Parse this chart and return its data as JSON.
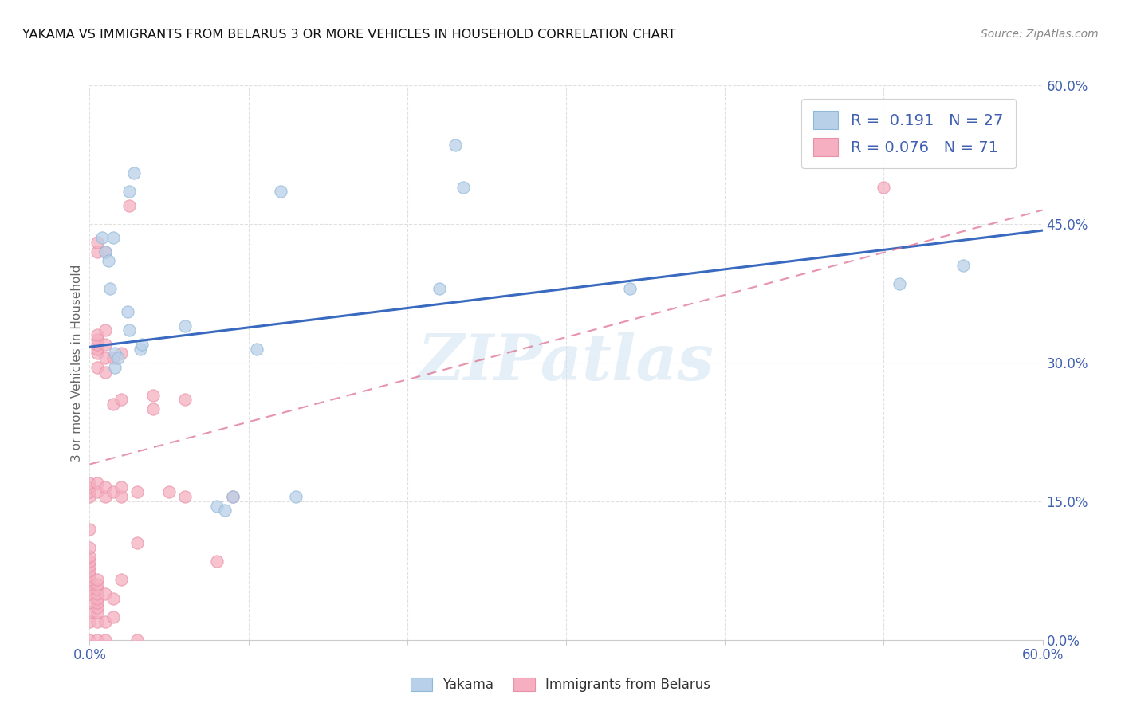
{
  "title": "YAKAMA VS IMMIGRANTS FROM BELARUS 3 OR MORE VEHICLES IN HOUSEHOLD CORRELATION CHART",
  "source": "Source: ZipAtlas.com",
  "ylabel": "3 or more Vehicles in Household",
  "xlim": [
    0,
    0.6
  ],
  "ylim": [
    0,
    0.6
  ],
  "xticks": [
    0.0,
    0.1,
    0.2,
    0.3,
    0.4,
    0.5,
    0.6
  ],
  "yticks": [
    0.0,
    0.15,
    0.3,
    0.45,
    0.6
  ],
  "blue_color": "#b8d0e8",
  "pink_color": "#f5afc0",
  "blue_edge": "#90b8d8",
  "pink_edge": "#e890a8",
  "trend_blue_color": "#3a6abf",
  "trend_pink_color": "#e07090",
  "right_axis_color": "#4060b0",
  "grid_color": "#e0e0e0",
  "blue_scatter": [
    [
      0.008,
      0.435
    ],
    [
      0.01,
      0.42
    ],
    [
      0.012,
      0.41
    ],
    [
      0.013,
      0.38
    ],
    [
      0.015,
      0.435
    ],
    [
      0.016,
      0.31
    ],
    [
      0.016,
      0.295
    ],
    [
      0.018,
      0.305
    ],
    [
      0.024,
      0.355
    ],
    [
      0.025,
      0.335
    ],
    [
      0.025,
      0.485
    ],
    [
      0.028,
      0.505
    ],
    [
      0.032,
      0.315
    ],
    [
      0.033,
      0.32
    ],
    [
      0.06,
      0.34
    ],
    [
      0.08,
      0.145
    ],
    [
      0.085,
      0.14
    ],
    [
      0.09,
      0.155
    ],
    [
      0.105,
      0.315
    ],
    [
      0.12,
      0.485
    ],
    [
      0.13,
      0.155
    ],
    [
      0.22,
      0.38
    ],
    [
      0.23,
      0.535
    ],
    [
      0.235,
      0.49
    ],
    [
      0.34,
      0.38
    ],
    [
      0.51,
      0.385
    ],
    [
      0.55,
      0.405
    ]
  ],
  "pink_scatter": [
    [
      0.0,
      0.0
    ],
    [
      0.0,
      0.02
    ],
    [
      0.0,
      0.03
    ],
    [
      0.0,
      0.04
    ],
    [
      0.0,
      0.05
    ],
    [
      0.0,
      0.055
    ],
    [
      0.0,
      0.06
    ],
    [
      0.0,
      0.065
    ],
    [
      0.0,
      0.07
    ],
    [
      0.0,
      0.075
    ],
    [
      0.0,
      0.08
    ],
    [
      0.0,
      0.085
    ],
    [
      0.0,
      0.09
    ],
    [
      0.0,
      0.1
    ],
    [
      0.0,
      0.12
    ],
    [
      0.0,
      0.155
    ],
    [
      0.0,
      0.16
    ],
    [
      0.0,
      0.165
    ],
    [
      0.0,
      0.17
    ],
    [
      0.005,
      0.0
    ],
    [
      0.005,
      0.02
    ],
    [
      0.005,
      0.03
    ],
    [
      0.005,
      0.035
    ],
    [
      0.005,
      0.04
    ],
    [
      0.005,
      0.045
    ],
    [
      0.005,
      0.05
    ],
    [
      0.005,
      0.055
    ],
    [
      0.005,
      0.06
    ],
    [
      0.005,
      0.065
    ],
    [
      0.005,
      0.16
    ],
    [
      0.005,
      0.17
    ],
    [
      0.005,
      0.295
    ],
    [
      0.005,
      0.31
    ],
    [
      0.005,
      0.315
    ],
    [
      0.005,
      0.32
    ],
    [
      0.005,
      0.325
    ],
    [
      0.005,
      0.33
    ],
    [
      0.005,
      0.42
    ],
    [
      0.005,
      0.43
    ],
    [
      0.01,
      0.0
    ],
    [
      0.01,
      0.02
    ],
    [
      0.01,
      0.05
    ],
    [
      0.01,
      0.155
    ],
    [
      0.01,
      0.165
    ],
    [
      0.01,
      0.29
    ],
    [
      0.01,
      0.305
    ],
    [
      0.01,
      0.32
    ],
    [
      0.01,
      0.335
    ],
    [
      0.01,
      0.42
    ],
    [
      0.015,
      0.025
    ],
    [
      0.015,
      0.045
    ],
    [
      0.015,
      0.16
    ],
    [
      0.015,
      0.255
    ],
    [
      0.015,
      0.305
    ],
    [
      0.02,
      0.065
    ],
    [
      0.02,
      0.155
    ],
    [
      0.02,
      0.165
    ],
    [
      0.02,
      0.26
    ],
    [
      0.02,
      0.31
    ],
    [
      0.025,
      0.47
    ],
    [
      0.03,
      0.0
    ],
    [
      0.03,
      0.105
    ],
    [
      0.03,
      0.16
    ],
    [
      0.04,
      0.25
    ],
    [
      0.04,
      0.265
    ],
    [
      0.05,
      0.16
    ],
    [
      0.06,
      0.155
    ],
    [
      0.06,
      0.26
    ],
    [
      0.08,
      0.085
    ],
    [
      0.09,
      0.155
    ],
    [
      0.5,
      0.49
    ]
  ],
  "blue_line_x": [
    0.0,
    0.6
  ],
  "blue_line_y": [
    0.317,
    0.443
  ],
  "pink_line_x": [
    0.0,
    0.6
  ],
  "pink_line_y": [
    0.19,
    0.465
  ],
  "watermark_text": "ZIPatlas",
  "legend_items": [
    {
      "label": "R =  0.191   N = 27",
      "color": "#b8d0e8",
      "edge": "#90b8d8"
    },
    {
      "label": "R = 0.076   N = 71",
      "color": "#f5afc0",
      "edge": "#e890a8"
    }
  ],
  "bottom_legend": [
    {
      "label": "Yakama",
      "color": "#b8d0e8",
      "edge": "#90b8d8"
    },
    {
      "label": "Immigrants from Belarus",
      "color": "#f5afc0",
      "edge": "#e890a8"
    }
  ]
}
